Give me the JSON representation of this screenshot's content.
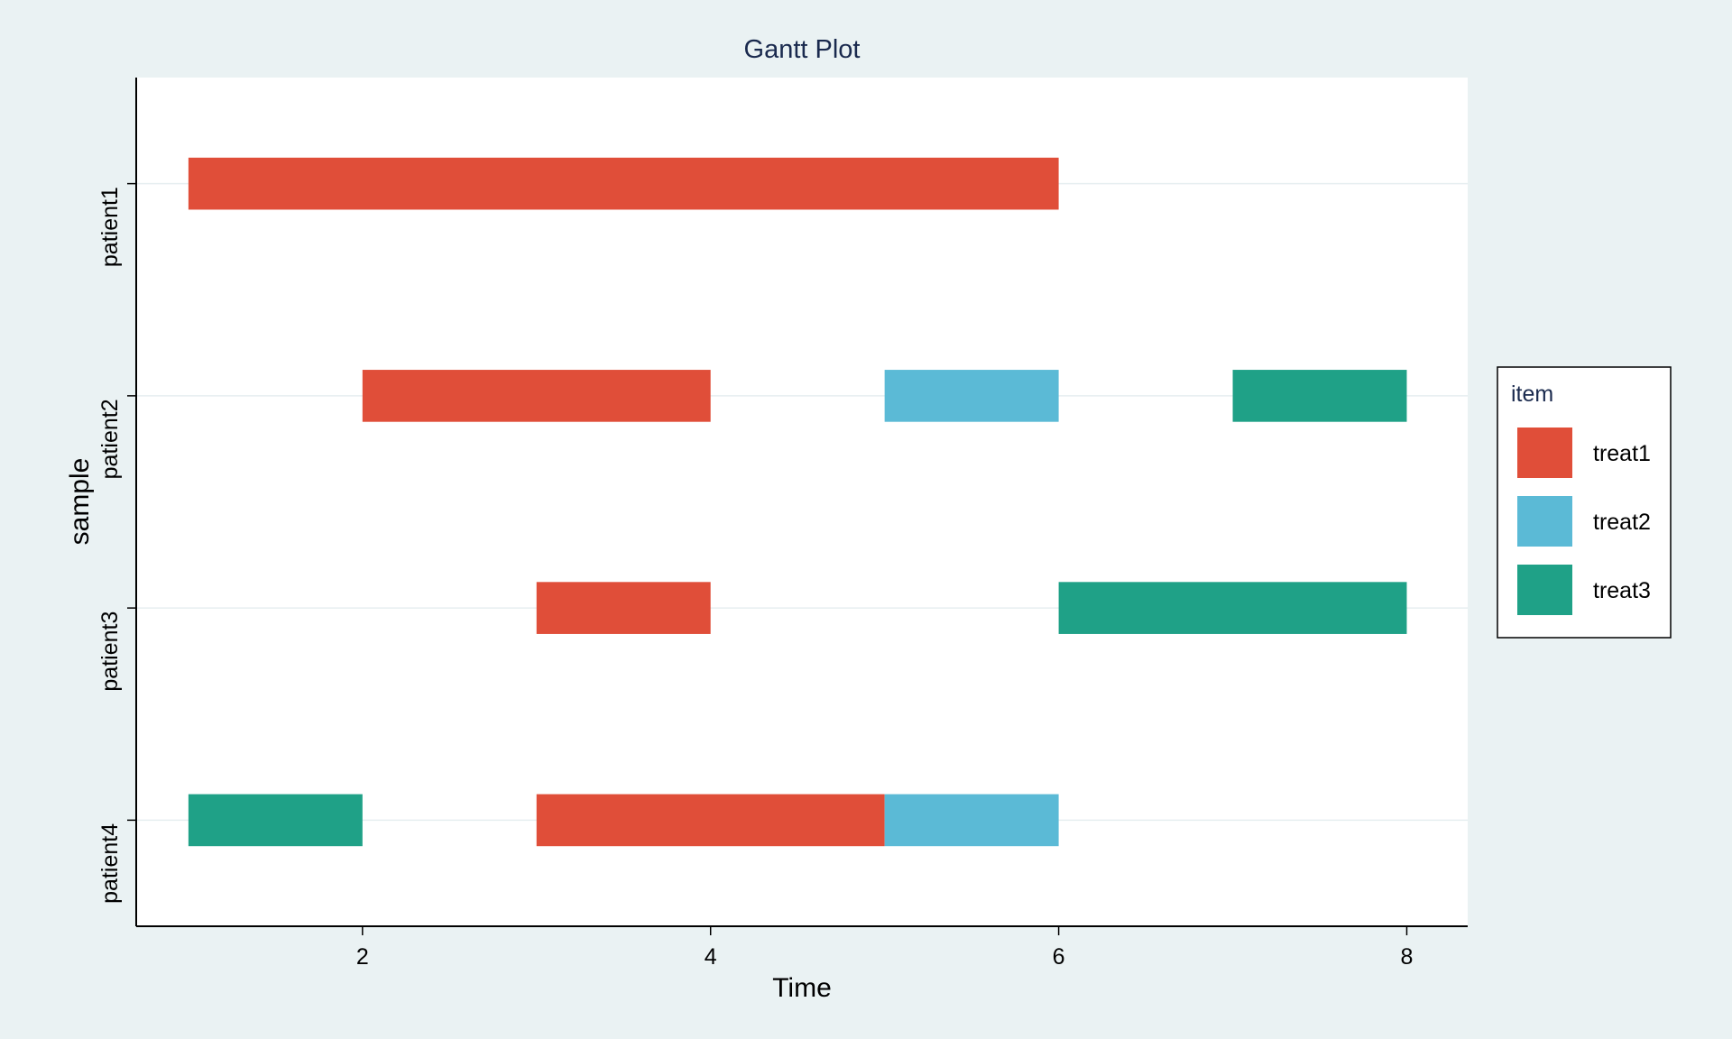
{
  "chart_data": {
    "type": "bar",
    "orientation": "horizontal",
    "title": "Gantt Plot",
    "xlabel": "Time",
    "ylabel": "sample",
    "xlim": [
      0.7,
      8.35
    ],
    "xticks": [
      2,
      4,
      6,
      8
    ],
    "categories": [
      "patient1",
      "patient2",
      "patient3",
      "patient4"
    ],
    "grid": "horizontal",
    "legend": {
      "title": "item",
      "position": "right",
      "entries": [
        {
          "name": "treat1",
          "color": "#e04e39"
        },
        {
          "name": "treat2",
          "color": "#5bbad6"
        },
        {
          "name": "treat3",
          "color": "#1fa187"
        }
      ]
    },
    "segments": [
      {
        "sample": "patient1",
        "item": "treat1",
        "start": 1,
        "end": 6
      },
      {
        "sample": "patient2",
        "item": "treat1",
        "start": 2,
        "end": 4
      },
      {
        "sample": "patient2",
        "item": "treat2",
        "start": 5,
        "end": 6
      },
      {
        "sample": "patient2",
        "item": "treat3",
        "start": 7,
        "end": 8
      },
      {
        "sample": "patient3",
        "item": "treat1",
        "start": 3,
        "end": 4
      },
      {
        "sample": "patient3",
        "item": "treat3",
        "start": 6,
        "end": 8
      },
      {
        "sample": "patient4",
        "item": "treat3",
        "start": 1,
        "end": 2
      },
      {
        "sample": "patient4",
        "item": "treat1",
        "start": 3,
        "end": 5
      },
      {
        "sample": "patient4",
        "item": "treat2",
        "start": 5,
        "end": 6
      }
    ]
  }
}
